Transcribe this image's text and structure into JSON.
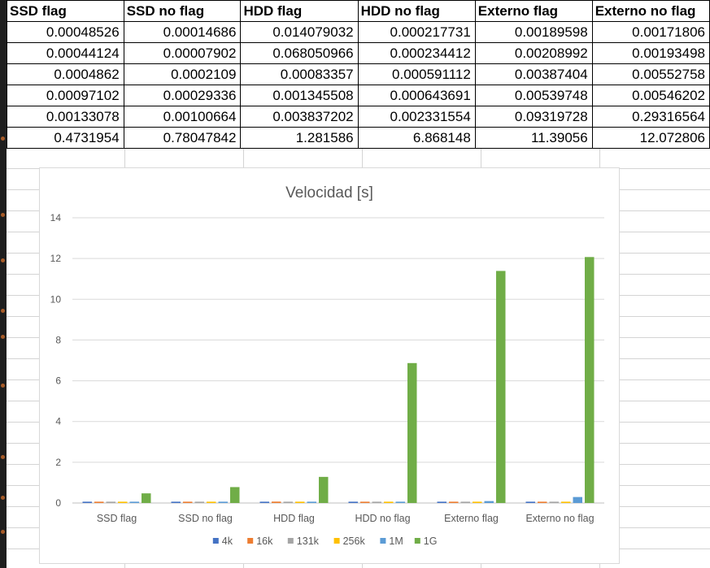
{
  "table": {
    "headers": [
      "SSD flag",
      "SSD no flag",
      "HDD flag",
      "HDD no flag",
      "Externo flag",
      "Externo no flag"
    ],
    "rows": [
      [
        "0.00048526",
        "0.00014686",
        "0.014079032",
        "0.000217731",
        "0.00189598",
        "0.00171806"
      ],
      [
        "0.00044124",
        "0.00007902",
        "0.068050966",
        "0.000234412",
        "0.00208992",
        "0.00193498"
      ],
      [
        "0.0004862",
        "0.0002109",
        "0.00083357",
        "0.000591112",
        "0.00387404",
        "0.00552758"
      ],
      [
        "0.00097102",
        "0.00029336",
        "0.001345508",
        "0.000643691",
        "0.00539748",
        "0.00546202"
      ],
      [
        "0.00133078",
        "0.00100664",
        "0.003837202",
        "0.002331554",
        "0.09319728",
        "0.29316564"
      ],
      [
        "0.4731954",
        "0.78047842",
        "1.281586",
        "6.868148",
        "11.39056",
        "12.072806"
      ]
    ]
  },
  "chart_data": {
    "type": "bar",
    "title": "Velocidad [s]",
    "xlabel": "",
    "ylabel": "",
    "ylim": [
      0,
      14
    ],
    "yticks": [
      0,
      2,
      4,
      6,
      8,
      10,
      12,
      14
    ],
    "grid": true,
    "legend": "bottom",
    "categories": [
      "SSD flag",
      "SSD no flag",
      "HDD flag",
      "HDD no flag",
      "Externo flag",
      "Externo no flag"
    ],
    "series": [
      {
        "name": "4k",
        "color": "#4472c4",
        "values": [
          0.00048526,
          0.00014686,
          0.014079032,
          0.000217731,
          0.00189598,
          0.00171806
        ]
      },
      {
        "name": "16k",
        "color": "#ed7d31",
        "values": [
          0.00044124,
          7.902e-05,
          0.068050966,
          0.000234412,
          0.00208992,
          0.00193498
        ]
      },
      {
        "name": "131k",
        "color": "#a5a5a5",
        "values": [
          0.0004862,
          0.0002109,
          0.00083357,
          0.000591112,
          0.00387404,
          0.00552758
        ]
      },
      {
        "name": "256k",
        "color": "#ffc000",
        "values": [
          0.00097102,
          0.00029336,
          0.001345508,
          0.000643691,
          0.00539748,
          0.00546202
        ]
      },
      {
        "name": "1M",
        "color": "#5b9bd5",
        "values": [
          0.00133078,
          0.00100664,
          0.003837202,
          0.002331554,
          0.09319728,
          0.29316564
        ]
      },
      {
        "name": "1G",
        "color": "#70ad47",
        "values": [
          0.4731954,
          0.78047842,
          1.281586,
          6.868148,
          11.39056,
          12.072806
        ]
      }
    ]
  }
}
